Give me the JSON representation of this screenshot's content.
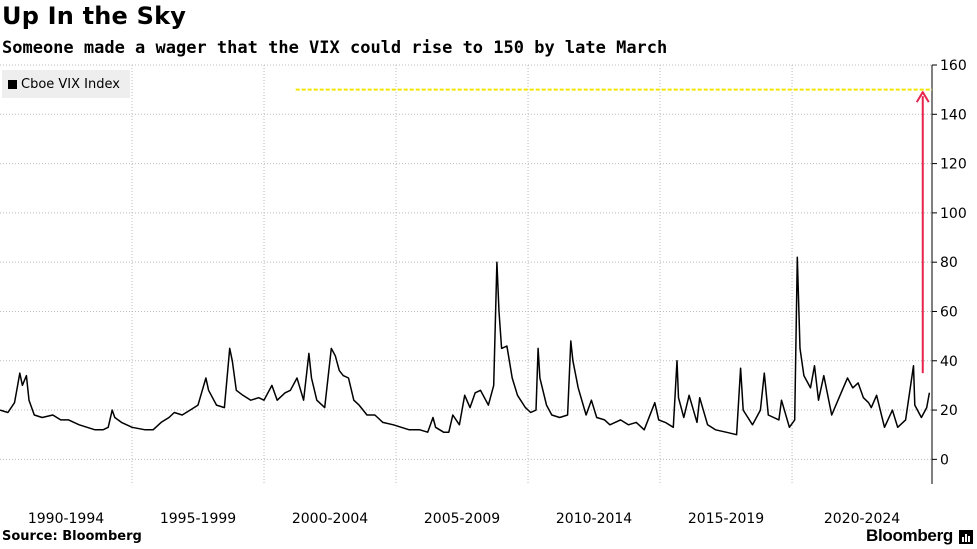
{
  "header": {
    "title": "Up In the Sky",
    "subtitle": "Someone made a wager that the VIX could rise to 150 by late March"
  },
  "footer": {
    "source": "Source: Bloomberg",
    "brand": "Bloomberg"
  },
  "colors": {
    "series": "#000000",
    "target_line": "#f2e600",
    "arrow": "#e8244d",
    "grid": "#bbbbbb",
    "legend_bg": "#eeeeee"
  },
  "chart_data": {
    "type": "line",
    "title": "Up In the Sky",
    "subtitle": "Someone made a wager that the VIX could rise to 150 by late March",
    "legend": [
      {
        "name": "Cboe VIX Index",
        "placement": "top-left"
      }
    ],
    "x_tick_labels": [
      "1990-1994",
      "1995-1999",
      "2000-2004",
      "2005-2009",
      "2010-2014",
      "2015-2019",
      "2020-2024"
    ],
    "xlim": [
      1990.0,
      2025.3
    ],
    "ylim": [
      -10,
      160
    ],
    "y_ticks": [
      0,
      20,
      40,
      60,
      80,
      100,
      120,
      140,
      160
    ],
    "y_axis_side": "right",
    "grid": {
      "horizontal": true,
      "vertical": true
    },
    "series": [
      {
        "name": "Cboe VIX Index",
        "points": [
          [
            1990.0,
            20
          ],
          [
            1990.3,
            19
          ],
          [
            1990.55,
            23
          ],
          [
            1990.65,
            29
          ],
          [
            1990.75,
            35
          ],
          [
            1990.85,
            30
          ],
          [
            1991.0,
            34
          ],
          [
            1991.1,
            24
          ],
          [
            1991.3,
            18
          ],
          [
            1991.6,
            17
          ],
          [
            1992.0,
            18
          ],
          [
            1992.3,
            16
          ],
          [
            1992.6,
            16
          ],
          [
            1993.0,
            14
          ],
          [
            1993.3,
            13
          ],
          [
            1993.6,
            12
          ],
          [
            1993.9,
            12
          ],
          [
            1994.1,
            13
          ],
          [
            1994.25,
            20
          ],
          [
            1994.35,
            17
          ],
          [
            1994.6,
            15
          ],
          [
            1995.0,
            13
          ],
          [
            1995.5,
            12
          ],
          [
            1995.8,
            12
          ],
          [
            1996.1,
            15
          ],
          [
            1996.4,
            17
          ],
          [
            1996.6,
            19
          ],
          [
            1996.9,
            18
          ],
          [
            1997.2,
            20
          ],
          [
            1997.5,
            22
          ],
          [
            1997.8,
            33
          ],
          [
            1997.9,
            28
          ],
          [
            1998.2,
            22
          ],
          [
            1998.5,
            21
          ],
          [
            1998.7,
            45
          ],
          [
            1998.8,
            40
          ],
          [
            1998.95,
            28
          ],
          [
            1999.2,
            26
          ],
          [
            1999.5,
            24
          ],
          [
            1999.8,
            25
          ],
          [
            2000.0,
            24
          ],
          [
            2000.3,
            30
          ],
          [
            2000.5,
            24
          ],
          [
            2000.8,
            27
          ],
          [
            2001.0,
            28
          ],
          [
            2001.25,
            33
          ],
          [
            2001.5,
            24
          ],
          [
            2001.7,
            43
          ],
          [
            2001.8,
            33
          ],
          [
            2002.0,
            24
          ],
          [
            2002.3,
            21
          ],
          [
            2002.55,
            45
          ],
          [
            2002.7,
            42
          ],
          [
            2002.85,
            36
          ],
          [
            2003.0,
            34
          ],
          [
            2003.2,
            33
          ],
          [
            2003.4,
            24
          ],
          [
            2003.6,
            22
          ],
          [
            2003.9,
            18
          ],
          [
            2004.2,
            18
          ],
          [
            2004.5,
            15
          ],
          [
            2004.9,
            14
          ],
          [
            2005.2,
            13
          ],
          [
            2005.5,
            12
          ],
          [
            2005.9,
            12
          ],
          [
            2006.2,
            11
          ],
          [
            2006.4,
            17
          ],
          [
            2006.5,
            13
          ],
          [
            2006.8,
            11
          ],
          [
            2007.0,
            11
          ],
          [
            2007.15,
            18
          ],
          [
            2007.4,
            14
          ],
          [
            2007.6,
            26
          ],
          [
            2007.8,
            21
          ],
          [
            2008.0,
            27
          ],
          [
            2008.2,
            28
          ],
          [
            2008.5,
            22
          ],
          [
            2008.7,
            30
          ],
          [
            2008.82,
            80
          ],
          [
            2008.9,
            60
          ],
          [
            2009.0,
            45
          ],
          [
            2009.2,
            46
          ],
          [
            2009.4,
            33
          ],
          [
            2009.6,
            26
          ],
          [
            2009.9,
            21
          ],
          [
            2010.1,
            19
          ],
          [
            2010.3,
            20
          ],
          [
            2010.38,
            45
          ],
          [
            2010.45,
            33
          ],
          [
            2010.7,
            22
          ],
          [
            2010.9,
            18
          ],
          [
            2011.2,
            17
          ],
          [
            2011.5,
            18
          ],
          [
            2011.62,
            48
          ],
          [
            2011.7,
            40
          ],
          [
            2011.9,
            29
          ],
          [
            2012.2,
            18
          ],
          [
            2012.4,
            24
          ],
          [
            2012.6,
            17
          ],
          [
            2012.9,
            16
          ],
          [
            2013.1,
            14
          ],
          [
            2013.5,
            16
          ],
          [
            2013.8,
            14
          ],
          [
            2014.1,
            15
          ],
          [
            2014.4,
            12
          ],
          [
            2014.8,
            23
          ],
          [
            2014.95,
            16
          ],
          [
            2015.2,
            15
          ],
          [
            2015.5,
            13
          ],
          [
            2015.64,
            40
          ],
          [
            2015.7,
            25
          ],
          [
            2015.9,
            17
          ],
          [
            2016.1,
            26
          ],
          [
            2016.4,
            15
          ],
          [
            2016.5,
            25
          ],
          [
            2016.8,
            14
          ],
          [
            2017.1,
            12
          ],
          [
            2017.5,
            11
          ],
          [
            2017.9,
            10
          ],
          [
            2018.05,
            37
          ],
          [
            2018.15,
            20
          ],
          [
            2018.5,
            14
          ],
          [
            2018.8,
            20
          ],
          [
            2018.95,
            35
          ],
          [
            2019.1,
            18
          ],
          [
            2019.5,
            16
          ],
          [
            2019.6,
            24
          ],
          [
            2019.9,
            13
          ],
          [
            2020.1,
            16
          ],
          [
            2020.2,
            82
          ],
          [
            2020.3,
            45
          ],
          [
            2020.45,
            34
          ],
          [
            2020.7,
            29
          ],
          [
            2020.85,
            38
          ],
          [
            2021.0,
            24
          ],
          [
            2021.2,
            34
          ],
          [
            2021.5,
            18
          ],
          [
            2021.9,
            28
          ],
          [
            2022.1,
            33
          ],
          [
            2022.3,
            29
          ],
          [
            2022.5,
            31
          ],
          [
            2022.7,
            25
          ],
          [
            2022.9,
            23
          ],
          [
            2023.0,
            21
          ],
          [
            2023.2,
            26
          ],
          [
            2023.5,
            13
          ],
          [
            2023.8,
            20
          ],
          [
            2024.0,
            13
          ],
          [
            2024.3,
            16
          ],
          [
            2024.6,
            38
          ],
          [
            2024.65,
            22
          ],
          [
            2024.9,
            17
          ],
          [
            2025.1,
            21
          ],
          [
            2025.2,
            27
          ]
        ]
      }
    ],
    "annotations": [
      {
        "type": "horizontal-dashed-line",
        "y": 150,
        "x_from": 2001.2,
        "x_to": 2025.3
      },
      {
        "type": "arrow",
        "x": 2024.95,
        "from_y": 35,
        "to_y": 149
      }
    ]
  }
}
